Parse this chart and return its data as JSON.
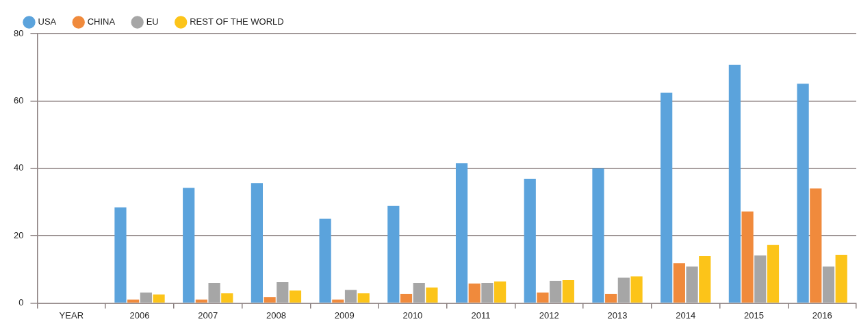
{
  "chart_data": {
    "type": "bar",
    "categories": [
      "YEAR",
      "2006",
      "2007",
      "2008",
      "2009",
      "2010",
      "2011",
      "2012",
      "2013",
      "2014",
      "2015",
      "2016"
    ],
    "series": [
      {
        "name": "USA",
        "color": "#5ba3dc",
        "values": [
          null,
          28.4,
          34.2,
          35.6,
          25,
          28.8,
          41.5,
          36.9,
          40,
          62.4,
          70.7,
          65.1
        ]
      },
      {
        "name": "CHINA",
        "color": "#f08a3c",
        "values": [
          null,
          1,
          1,
          1.7,
          1,
          2.7,
          5.8,
          3.1,
          2.7,
          11.8,
          27.2,
          34
        ]
      },
      {
        "name": "EU",
        "color": "#a6a6a6",
        "values": [
          null,
          3.1,
          6,
          6.2,
          3.9,
          6,
          6,
          6.6,
          7.5,
          10.8,
          14.1,
          10.8
        ]
      },
      {
        "name": "REST OF THE WORLD",
        "color": "#fcc419",
        "values": [
          null,
          2.5,
          2.9,
          3.7,
          2.9,
          4.6,
          6.4,
          6.8,
          7.9,
          13.9,
          17.2,
          14.3
        ]
      }
    ],
    "ylim": [
      0,
      80
    ],
    "yticks": [
      0,
      20,
      40,
      60,
      80
    ],
    "grid": "y",
    "legend": "top left"
  }
}
